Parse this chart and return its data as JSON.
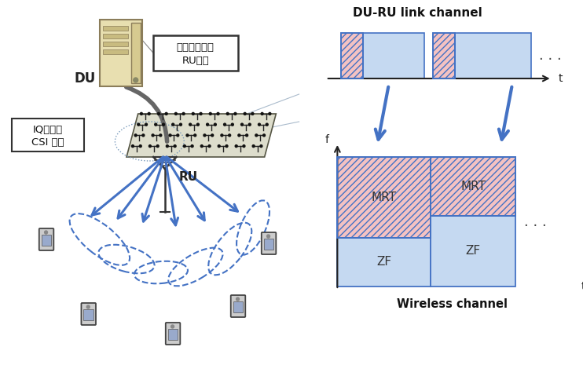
{
  "bg_color": "#ffffff",
  "du_label": "DU",
  "ru_label": "RU",
  "box_label_line1": "무선자원할당",
  "box_label_line2": "RU제어",
  "iq_label_line1": "IQ데이터",
  "iq_label_line2": "CSI 교환",
  "du_ru_link_label": "DU-RU link channel",
  "wireless_channel_label": "Wireless channel",
  "t_label": "t",
  "f_label": "f",
  "mrt_label": "MRT",
  "zf_label": "ZF",
  "light_blue": "#C5D9F1",
  "hatch_bg": "#F4C2C2",
  "hatch_color": "#CC4444",
  "border_color": "#4472C4",
  "arrow_blue": "#4472C4",
  "dark_gray": "#555555",
  "server_fill": "#E8DFB0",
  "server_edge": "#8B7D5A"
}
